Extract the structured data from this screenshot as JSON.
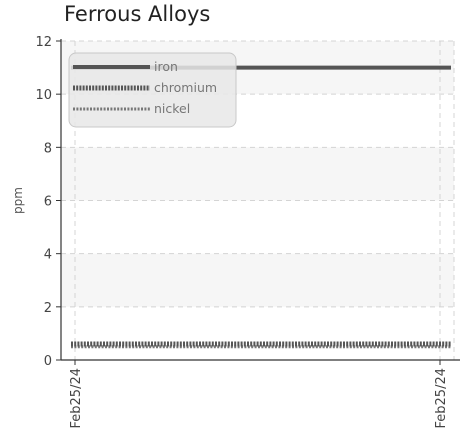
{
  "chart_data": {
    "type": "line",
    "title": "Ferrous Alloys",
    "xlabel": "",
    "ylabel": "ppm",
    "x": [
      "Feb25/24",
      "Feb25/24"
    ],
    "ylim": [
      0,
      12
    ],
    "yticks": [
      0,
      2,
      4,
      6,
      8,
      10,
      12
    ],
    "grid": true,
    "legend_position": "top-left",
    "series": [
      {
        "name": "iron",
        "values": [
          11,
          11
        ],
        "color": "#555555",
        "style": "solid"
      },
      {
        "name": "chromium",
        "values": [
          0.6,
          0.6
        ],
        "color": "#555555",
        "style": "dotted"
      },
      {
        "name": "nickel",
        "values": [
          0.5,
          0.5
        ],
        "color": "#777777",
        "style": "dotted"
      }
    ]
  }
}
